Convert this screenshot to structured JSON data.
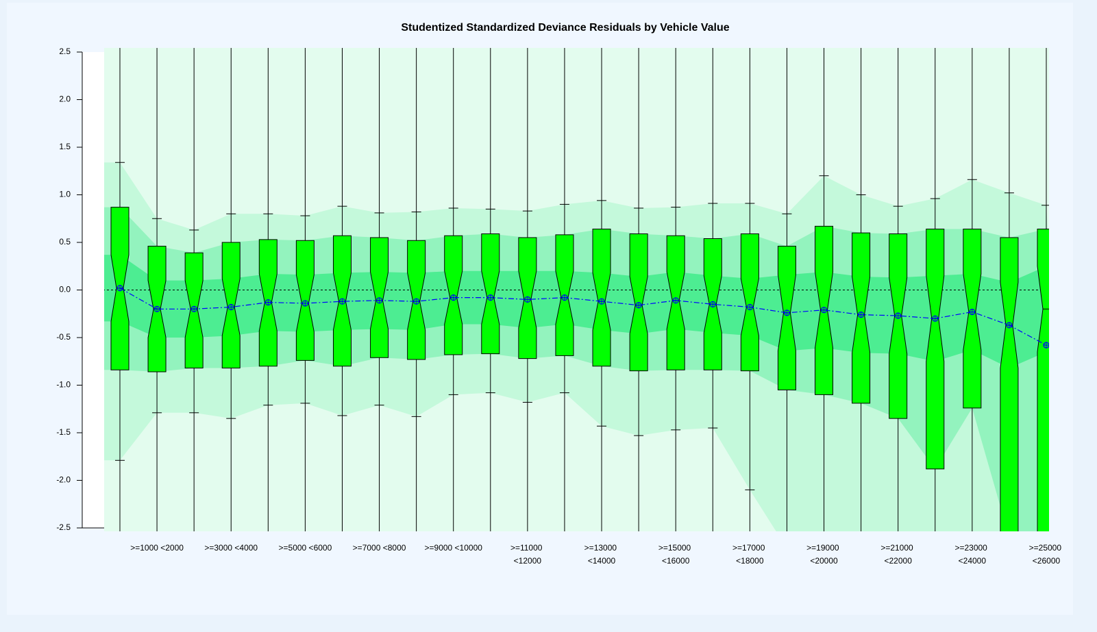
{
  "chart_data": {
    "type": "boxplot",
    "title": "Studentized Standardized Deviance Residuals by Vehicle Value",
    "categories": [
      null,
      ">=1000 <2000",
      null,
      ">=3000 <4000",
      null,
      ">=5000 <6000",
      null,
      ">=7000 <8000",
      null,
      ">=9000 <10000",
      null,
      ">=11000 <12000",
      null,
      ">=13000 <14000",
      null,
      ">=15000 <16000",
      null,
      ">=17000 <18000",
      null,
      ">=19000 <20000",
      null,
      ">=21000 <22000",
      null,
      ">=23000 <24000",
      null,
      ">=25000 <26000"
    ],
    "whisker_high": [
      1.34,
      0.75,
      0.63,
      0.8,
      0.8,
      0.78,
      0.88,
      0.81,
      0.82,
      0.86,
      0.85,
      0.83,
      0.9,
      0.94,
      0.86,
      0.87,
      0.91,
      0.91,
      0.8,
      1.2,
      1.0,
      0.88,
      0.96,
      1.16,
      1.02,
      0.89
    ],
    "q3": [
      0.87,
      0.46,
      0.39,
      0.5,
      0.53,
      0.52,
      0.57,
      0.55,
      0.52,
      0.57,
      0.59,
      0.55,
      0.58,
      0.64,
      0.59,
      0.57,
      0.54,
      0.59,
      0.46,
      0.67,
      0.6,
      0.59,
      0.64,
      0.64,
      0.55,
      0.64
    ],
    "median": [
      0.02,
      -0.2,
      -0.2,
      -0.18,
      -0.13,
      -0.14,
      -0.12,
      -0.11,
      -0.12,
      -0.08,
      -0.08,
      -0.1,
      -0.08,
      -0.12,
      -0.16,
      -0.11,
      -0.15,
      -0.18,
      -0.24,
      -0.21,
      -0.26,
      -0.27,
      -0.3,
      -0.23,
      -0.37,
      -0.2
    ],
    "notch": [
      0.35,
      0.3,
      0.3,
      0.3,
      0.3,
      0.3,
      0.3,
      0.3,
      0.3,
      0.28,
      0.28,
      0.3,
      0.28,
      0.3,
      0.3,
      0.3,
      0.3,
      0.3,
      0.4,
      0.4,
      0.4,
      0.4,
      0.45,
      0.4,
      0.45,
      0.45
    ],
    "q1": [
      -0.84,
      -0.86,
      -0.82,
      -0.82,
      -0.8,
      -0.74,
      -0.8,
      -0.71,
      -0.73,
      -0.68,
      -0.67,
      -0.72,
      -0.69,
      -0.8,
      -0.85,
      -0.84,
      -0.84,
      -0.85,
      -1.05,
      -1.1,
      -1.19,
      -1.35,
      -1.88,
      -1.24,
      -2.6,
      -2.6
    ],
    "whisker_low": [
      -1.79,
      -1.29,
      -1.29,
      -1.35,
      -1.21,
      -1.19,
      -1.32,
      -1.21,
      -1.33,
      -1.1,
      -1.08,
      -1.18,
      -1.08,
      -1.43,
      -1.53,
      -1.47,
      -1.45,
      -2.1,
      null,
      null,
      null,
      null,
      null,
      null,
      null,
      null
    ],
    "mean": [
      0.02,
      -0.2,
      -0.2,
      -0.18,
      -0.13,
      -0.14,
      -0.12,
      -0.11,
      -0.12,
      -0.08,
      -0.08,
      -0.1,
      -0.08,
      -0.12,
      -0.16,
      -0.11,
      -0.15,
      -0.18,
      -0.24,
      -0.21,
      -0.26,
      -0.27,
      -0.3,
      -0.23,
      -0.37,
      -0.58
    ],
    "box_color": "#00ff00",
    "mean_color": "#0000ff",
    "band_colors": [
      "#c4f9db",
      "#93f3be",
      "#4ded92"
    ],
    "reference_line": 0,
    "ylim": [
      -2.5,
      2.5
    ],
    "yticks": [
      {
        "value": 2.5,
        "label": "2.5"
      },
      {
        "value": 2.0,
        "label": "2.0"
      },
      {
        "value": 1.5,
        "label": "1.5"
      },
      {
        "value": 1.0,
        "label": "1.0"
      },
      {
        "value": 0.5,
        "label": "0.5"
      },
      {
        "value": 0.0,
        "label": "0.0"
      },
      {
        "value": -0.5,
        "label": "-0.5"
      },
      {
        "value": -1.0,
        "label": "-1.0"
      },
      {
        "value": -1.5,
        "label": "-1.5"
      },
      {
        "value": -2.0,
        "label": "-2.0"
      },
      {
        "value": -2.5,
        "label": "-2.5"
      }
    ]
  }
}
